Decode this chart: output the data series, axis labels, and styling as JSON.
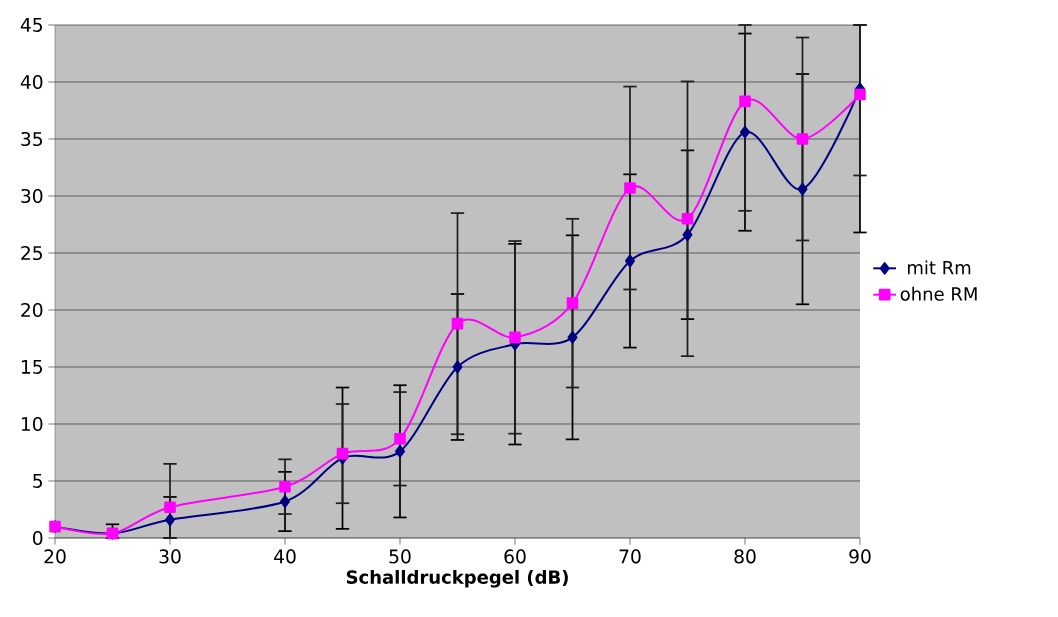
{
  "chart_data": {
    "type": "line",
    "xlabel": "Schalldruckpegel (dB)",
    "x": [
      20,
      25,
      30,
      40,
      45,
      50,
      55,
      60,
      65,
      70,
      75,
      80,
      85,
      90
    ],
    "series": [
      {
        "name": "mit Rm",
        "color": "#000080",
        "marker": "diamond",
        "values": [
          1.0,
          0.4,
          1.6,
          3.2,
          7.0,
          7.6,
          15.0,
          17.0,
          17.6,
          24.3,
          26.6,
          35.6,
          30.6,
          39.4
        ],
        "errors": [
          null,
          [
            0,
            1.2
          ],
          [
            0,
            3.6
          ],
          2.6,
          6.2,
          5.8,
          6.4,
          8.8,
          8.95,
          7.6,
          7.4,
          8.65,
          10.1,
          [
            26.8,
            45
          ]
        ]
      },
      {
        "name": "ohne RM",
        "color": "#ff00ff",
        "marker": "square",
        "values": [
          1.0,
          0.4,
          2.7,
          4.5,
          7.4,
          8.7,
          18.8,
          17.6,
          20.6,
          30.7,
          28.0,
          38.3,
          35.0,
          38.9
        ],
        "errors": [
          null,
          null,
          [
            0,
            6.5
          ],
          2.4,
          4.35,
          4.1,
          9.7,
          8.45,
          7.4,
          8.9,
          12.05,
          [
            28.7,
            45
          ],
          8.9,
          [
            31.8,
            45
          ]
        ]
      }
    ],
    "xlim": [
      20,
      90
    ],
    "ylim": [
      0,
      45
    ],
    "xticks": [
      20,
      30,
      40,
      50,
      60,
      70,
      80,
      90
    ],
    "yticks": [
      0,
      5,
      10,
      15,
      20,
      25,
      30,
      35,
      40,
      45
    ],
    "grid": "y",
    "legend": "right"
  }
}
